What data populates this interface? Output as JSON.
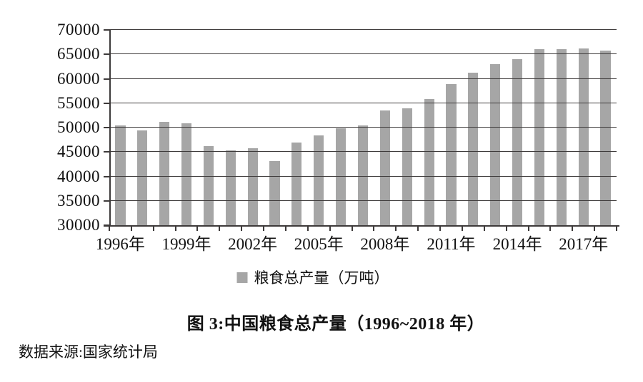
{
  "figure": {
    "caption": "图 3:中国粮食总产量（1996~2018 年）",
    "source": "数据来源:国家统计局"
  },
  "chart_data": {
    "type": "bar",
    "title": "图 3:中国粮食总产量（1996~2018 年）",
    "categories": [
      "1996年",
      "1997年",
      "1998年",
      "1999年",
      "2000年",
      "2001年",
      "2002年",
      "2003年",
      "2004年",
      "2005年",
      "2006年",
      "2007年",
      "2008年",
      "2009年",
      "2010年",
      "2011年",
      "2012年",
      "2013年",
      "2014年",
      "2015年",
      "2016年",
      "2017年",
      "2018年"
    ],
    "series": [
      {
        "name": "粮食总产量（万吨）",
        "values": [
          50454,
          49417,
          51230,
          50839,
          46218,
          45264,
          45706,
          43070,
          46947,
          48402,
          49804,
          50414,
          53434,
          53941,
          55911,
          58849,
          61223,
          63048,
          63965,
          66060,
          66044,
          66161,
          65789
        ]
      }
    ],
    "xlabel": "",
    "ylabel": "",
    "ylim": [
      30000,
      70000
    ],
    "ytick_step": 5000,
    "ytick_labels": [
      "30000",
      "35000",
      "40000",
      "45000",
      "50000",
      "55000",
      "60000",
      "65000",
      "70000"
    ],
    "xtick_labels": [
      "1996年",
      "1999年",
      "2002年",
      "2005年",
      "2008年",
      "2011年",
      "2014年",
      "2017年"
    ],
    "xtick_label_every": 3,
    "grid": true,
    "legend_position": "bottom",
    "bar_color": "#a6a6a6",
    "axis_color": "#3d3a3a",
    "source_note": "数据来源:国家统计局"
  }
}
